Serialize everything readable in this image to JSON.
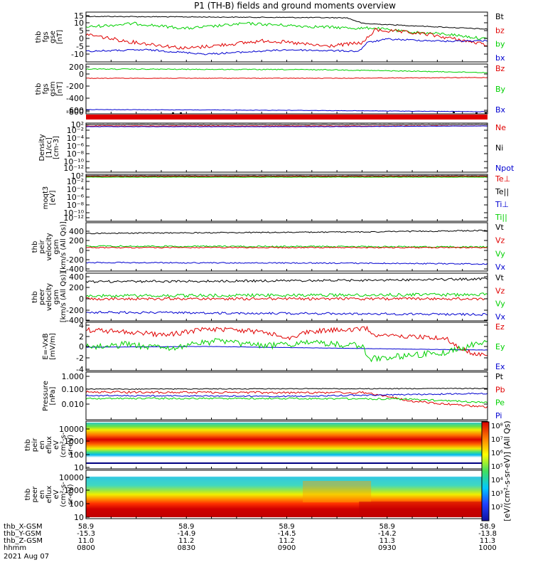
{
  "title": "P1 (TH-B) fields and ground moments overview",
  "colors": {
    "black": "#000000",
    "red": "#e00000",
    "green": "#00d000",
    "blue": "#0000d0"
  },
  "panels": [
    {
      "id": "fgs-gse",
      "ylabel_lines": [
        "thb",
        "fgs",
        "gse",
        "[nT]"
      ],
      "ticks": [
        "15",
        "10",
        "5",
        "0",
        "-5",
        "-10"
      ],
      "legend": [
        {
          "label": "Bt",
          "color": "#000000"
        },
        {
          "label": "bz",
          "color": "#e00000"
        },
        {
          "label": "by",
          "color": "#00d000"
        },
        {
          "label": "bx",
          "color": "#0000d0"
        }
      ]
    },
    {
      "id": "fgs-gsm",
      "ylabel_lines": [
        "thb",
        "fgs",
        "gsm",
        "[nT]"
      ],
      "ticks": [
        "200",
        "0",
        "-200",
        "-400",
        "-600",
        "-800"
      ],
      "legend": [
        {
          "label": "Bz",
          "color": "#e00000"
        },
        {
          "label": "By",
          "color": "#00d000"
        },
        {
          "label": "Bx",
          "color": "#0000d0"
        }
      ]
    },
    {
      "id": "density",
      "ylabel_lines": [
        "Density",
        "[1/cc]",
        "[cm-3]"
      ],
      "ticks": [
        "10²",
        "10⁻²",
        "10⁻⁴",
        "10⁻⁶",
        "10⁻⁸",
        "10⁻¹⁰",
        "10⁻¹²"
      ],
      "legend": [
        {
          "label": "Ne",
          "color": "#e00000"
        },
        {
          "label": "Ni",
          "color": "#000000"
        },
        {
          "label": "Npot",
          "color": "#0000d0"
        }
      ]
    },
    {
      "id": "temp",
      "ylabel_lines": [
        "moqt3",
        "[eV]"
      ],
      "ticks": [
        "10²",
        "10⁻²",
        "10⁻⁴",
        "10⁻⁶",
        "10⁻⁸",
        "10⁻¹⁰",
        "10⁻¹²"
      ],
      "legend": [
        {
          "label": "Te⊥",
          "color": "#e00000"
        },
        {
          "label": "Te||",
          "color": "#000000"
        },
        {
          "label": "Ti⊥",
          "color": "#0000d0"
        },
        {
          "label": "Ti||",
          "color": "#00d000"
        }
      ]
    },
    {
      "id": "peir-vel",
      "ylabel_lines": [
        "thb",
        "peir",
        "velocity",
        "gsm",
        "[km/s (All Qs)]"
      ],
      "ticks": [
        "400",
        "200",
        "0",
        "-200",
        "-400"
      ],
      "legend": [
        {
          "label": "Vt",
          "color": "#000000"
        },
        {
          "label": "Vz",
          "color": "#e00000"
        },
        {
          "label": "Vy",
          "color": "#00d000"
        },
        {
          "label": "Vx",
          "color": "#0000d0"
        }
      ]
    },
    {
      "id": "peer-vel",
      "ylabel_lines": [
        "thb",
        "peer",
        "velocity",
        "gsm",
        "[km/s (All Qs)]"
      ],
      "ticks": [
        "400",
        "200",
        "0",
        "-200",
        "-400"
      ],
      "legend": [
        {
          "label": "Vt",
          "color": "#000000"
        },
        {
          "label": "Vz",
          "color": "#e00000"
        },
        {
          "label": "Vy",
          "color": "#00d000"
        },
        {
          "label": "Vx",
          "color": "#0000d0"
        }
      ]
    },
    {
      "id": "efield",
      "ylabel_lines": [
        "E=-VxB",
        "[mV/m]"
      ],
      "ticks": [
        "4",
        "2",
        "0",
        "-2",
        "-4"
      ],
      "legend": [
        {
          "label": "Ez",
          "color": "#e00000"
        },
        {
          "label": "Ey",
          "color": "#00d000"
        },
        {
          "label": "Ex",
          "color": "#0000d0"
        }
      ]
    },
    {
      "id": "pressure",
      "ylabel_lines": [
        "Pressure",
        "[nPa]"
      ],
      "ticks": [
        "1.000",
        "0.100",
        "0.010"
      ],
      "legend": [
        {
          "label": "Pt",
          "color": "#000000"
        },
        {
          "label": "Pb",
          "color": "#e00000"
        },
        {
          "label": "Pe",
          "color": "#00d000"
        },
        {
          "label": "Pi",
          "color": "#0000d0"
        }
      ]
    },
    {
      "id": "peir-spec",
      "ylabel_lines": [
        "thb",
        "peir",
        "en",
        "eflux",
        "eV",
        "(cm²-s-",
        "sr-eV)"
      ],
      "ticks": [
        "10000",
        "1000",
        "100",
        "10"
      ]
    },
    {
      "id": "peer-spec",
      "ylabel_lines": [
        "thb",
        "peer",
        "en",
        "eflux",
        "eV",
        "(cm²-s-",
        "sr-eV)"
      ],
      "ticks": [
        "10000",
        "1000",
        "100",
        "10"
      ]
    }
  ],
  "colorbar": {
    "ticks": [
      "10⁸",
      "10⁷",
      "10⁶",
      "10⁵",
      "10⁴",
      "10³",
      "10²"
    ],
    "label": "[eV/(cm²-s-sr-eV)] (All Qs)"
  },
  "xaxis": {
    "row_labels": [
      "thb_X-GSM",
      "thb_Y-GSM",
      "thb_Z-GSM",
      "hhmm"
    ],
    "columns": [
      [
        "58.9",
        "-15.3",
        "11.0",
        "0800"
      ],
      [
        "58.9",
        "-14.9",
        "11.2",
        "0830"
      ],
      [
        "58.9",
        "-14.5",
        "11.2",
        "0900"
      ],
      [
        "58.9",
        "-14.2",
        "11.3",
        "0930"
      ],
      [
        "58.9",
        "-13.8",
        "11.3",
        "1000"
      ]
    ],
    "date": "2021 Aug 07"
  },
  "chart_data": [
    {
      "type": "line",
      "title": "P1 (TH-B) fields and ground moments overview",
      "ylabel": "thb fgs gse [nT]",
      "x": [
        "0800",
        "0830",
        "0900",
        "0930",
        "1000"
      ],
      "series": [
        {
          "name": "Bt",
          "values": [
            13,
            12,
            12,
            13,
            6
          ]
        },
        {
          "name": "bz",
          "values": [
            1,
            -2,
            -1,
            5,
            3
          ]
        },
        {
          "name": "by",
          "values": [
            8,
            6,
            7,
            6,
            2
          ]
        },
        {
          "name": "bx",
          "values": [
            -10,
            -9,
            -8,
            -3,
            0
          ]
        }
      ],
      "ylim": [
        -14,
        17
      ]
    },
    {
      "type": "line",
      "ylabel": "thb fgs gsm [nT]",
      "x": [
        "0800",
        "0830",
        "0900",
        "0930",
        "1000"
      ],
      "series": [
        {
          "name": "Bz",
          "values": [
            -60,
            -60,
            -60,
            -60,
            -55
          ]
        },
        {
          "name": "By",
          "values": [
            60,
            60,
            55,
            55,
            50
          ]
        },
        {
          "name": "Bx",
          "values": [
            -820,
            -825,
            -830,
            -830,
            -835
          ]
        }
      ],
      "ylim": [
        -900,
        220
      ]
    },
    {
      "type": "line",
      "ylabel": "Density [1/cc] [cm-3]",
      "yscale": "log",
      "x": [
        "0800",
        "0830",
        "0900",
        "0930",
        "1000"
      ],
      "series": [
        {
          "name": "Ne",
          "values": [
            1,
            1,
            1,
            1,
            1
          ]
        },
        {
          "name": "Ni",
          "values": [
            1,
            1,
            1,
            1,
            1
          ]
        },
        {
          "name": "Npot",
          "values": [
            0.8,
            0.8,
            0.8,
            0.8,
            0.8
          ]
        }
      ]
    },
    {
      "type": "line",
      "ylabel": "moqt3 [eV]",
      "yscale": "log",
      "x": [
        "0800",
        "0830",
        "0900",
        "0930",
        "1000"
      ],
      "series": [
        {
          "name": "Te⊥",
          "values": [
            100,
            100,
            100,
            100,
            100
          ]
        },
        {
          "name": "Te||",
          "values": [
            100,
            100,
            100,
            100,
            100
          ]
        },
        {
          "name": "Ti⊥",
          "values": [
            100,
            100,
            100,
            100,
            100
          ]
        },
        {
          "name": "Ti||",
          "values": [
            100,
            100,
            100,
            100,
            100
          ]
        }
      ]
    },
    {
      "type": "line",
      "ylabel": "thb peir velocity gsm [km/s (All Qs)]",
      "x": [
        "0800",
        "0830",
        "0900",
        "0930",
        "1000"
      ],
      "series": [
        {
          "name": "Vt",
          "values": [
            370,
            380,
            390,
            390,
            400
          ]
        },
        {
          "name": "Vz",
          "values": [
            0,
            0,
            0,
            0,
            0
          ]
        },
        {
          "name": "Vy",
          "values": [
            0,
            0,
            0,
            0,
            0
          ]
        },
        {
          "name": "Vx",
          "values": [
            -370,
            -380,
            -390,
            -390,
            -400
          ]
        }
      ],
      "ylim": [
        -450,
        450
      ]
    },
    {
      "type": "line",
      "ylabel": "thb peer velocity gsm [km/s (All Qs)]",
      "x": [
        "0800",
        "0830",
        "0900",
        "0930",
        "1000"
      ],
      "series": [
        {
          "name": "Vt",
          "values": [
            270,
            280,
            290,
            290,
            300
          ]
        },
        {
          "name": "Vz",
          "values": [
            0,
            0,
            0,
            0,
            0
          ]
        },
        {
          "name": "Vy",
          "values": [
            10,
            10,
            10,
            10,
            10
          ]
        },
        {
          "name": "Vx",
          "values": [
            -270,
            -280,
            -290,
            -290,
            -300
          ]
        }
      ],
      "ylim": [
        -450,
        450
      ]
    },
    {
      "type": "line",
      "ylabel": "E=-VxB [mV/m]",
      "x": [
        "0800",
        "0830",
        "0900",
        "0930",
        "1000"
      ],
      "series": [
        {
          "name": "Ez",
          "values": [
            2.5,
            2.8,
            2.0,
            2.5,
            0
          ]
        },
        {
          "name": "Ey",
          "values": [
            0,
            1,
            -0.5,
            -2,
            1
          ]
        },
        {
          "name": "Ex",
          "values": [
            0,
            0,
            0,
            0,
            0
          ]
        }
      ],
      "ylim": [
        -4.2,
        4.2
      ]
    },
    {
      "type": "line",
      "ylabel": "Pressure [nPa]",
      "yscale": "log",
      "x": [
        "0800",
        "0830",
        "0900",
        "0930",
        "1000"
      ],
      "series": [
        {
          "name": "Pt",
          "values": [
            0.1,
            0.1,
            0.1,
            0.1,
            0.1
          ]
        },
        {
          "name": "Pb",
          "values": [
            0.06,
            0.06,
            0.06,
            0.025,
            0.015
          ]
        },
        {
          "name": "Pe",
          "values": [
            0.03,
            0.03,
            0.03,
            0.03,
            0.02
          ]
        },
        {
          "name": "Pi",
          "values": [
            0.035,
            0.035,
            0.035,
            0.04,
            0.04
          ]
        }
      ]
    },
    {
      "type": "heatmap",
      "ylabel": "thb peir en eflux eV (cm²-s- sr-eV)",
      "yscale": "log",
      "ylim": [
        5,
        20000
      ],
      "x": [
        "0800",
        "0830",
        "0900",
        "0930",
        "1000"
      ],
      "peak_energy_eV": 1000
    },
    {
      "type": "heatmap",
      "ylabel": "thb peer en eflux eV (cm²-s- sr-eV)",
      "yscale": "log",
      "ylim": [
        5,
        20000
      ],
      "x": [
        "0800",
        "0830",
        "0900",
        "0930",
        "1000"
      ],
      "peak_energy_eV": 20
    }
  ]
}
